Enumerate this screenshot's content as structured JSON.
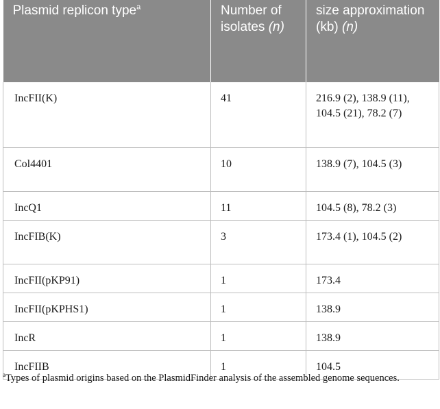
{
  "table": {
    "headers": {
      "col1": {
        "text": "Plasmid replicon type",
        "sup": "a"
      },
      "col2": {
        "text": "Number of isolates",
        "italic": "(n)"
      },
      "col3": {
        "text": "size approximation (kb)",
        "italic": "(n)"
      }
    },
    "rows": [
      {
        "replicon": "IncFII(K)",
        "isolates": "41",
        "size": "216.9 (2), 138.9 (11), 104.5 (21), 78.2 (7)"
      },
      {
        "replicon": "Col4401",
        "isolates": "10",
        "size": "138.9 (7), 104.5 (3)"
      },
      {
        "replicon": "IncQ1",
        "isolates": "11",
        "size": "104.5 (8), 78.2 (3)"
      },
      {
        "replicon": "IncFIB(K)",
        "isolates": "3",
        "size": "173.4 (1), 104.5 (2)"
      },
      {
        "replicon": "IncFII(pKP91)",
        "isolates": "1",
        "size": "173.4"
      },
      {
        "replicon": "IncFII(pKPHS1)",
        "isolates": "1",
        "size": "138.9"
      },
      {
        "replicon": "IncR",
        "isolates": "1",
        "size": "138.9"
      },
      {
        "replicon": "IncFIIB",
        "isolates": "1",
        "size": "104.5"
      }
    ]
  },
  "footnote": {
    "marker": "a",
    "text": "Types of plasmid origins based on the PlasmidFinder analysis of the assembled genome sequences."
  }
}
